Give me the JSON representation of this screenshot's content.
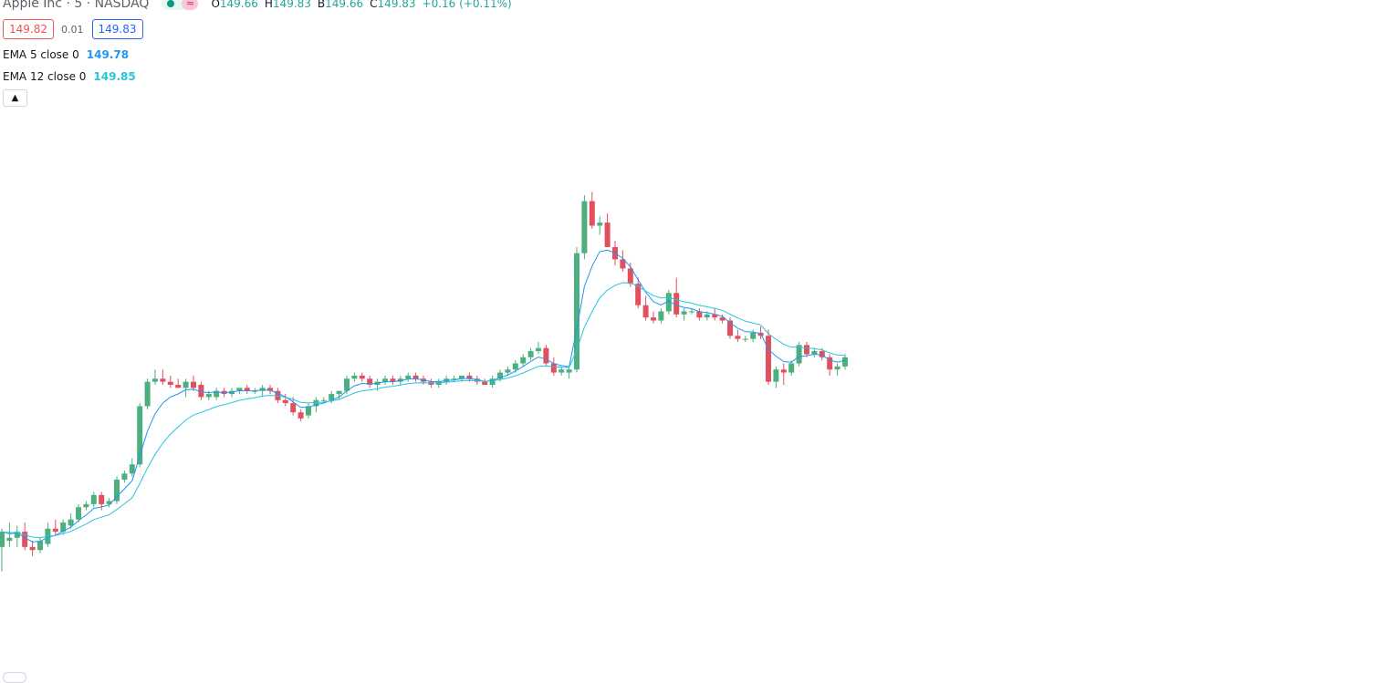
{
  "symbol": {
    "name": "Apple Inc",
    "interval": "5",
    "exchange": "NASDAQ",
    "full_title": "Apple Inc · 5 · NASDAQ"
  },
  "ohlc": {
    "o_label": "O",
    "o": "149.66",
    "h_label": "H",
    "h": "149.83",
    "b_label": "B",
    "b": "149.66",
    "c_label": "C",
    "c": "149.83",
    "change": "+0.16 (+0.11%)"
  },
  "trade": {
    "sell": "149.82",
    "spread": "0.01",
    "buy": "149.83"
  },
  "indicators": [
    {
      "name": "EMA 5 close 0",
      "value": "149.78",
      "color": "#2196f3"
    },
    {
      "name": "EMA 12 close 0",
      "value": "149.85",
      "color": "#26c6da"
    }
  ],
  "colors": {
    "up": "#4caf7d",
    "down": "#e0505e",
    "accent": "#26a69a"
  },
  "icons": {
    "status": "status-dot-icon",
    "delayed": "delayed-data-icon",
    "collapse": "chevron-up-icon"
  },
  "chart_data": {
    "type": "candlestick",
    "xlabel": "",
    "ylabel": "",
    "grid": false,
    "ylim": [
      145.6,
      152.9
    ],
    "series": [
      {
        "name": "Apple Inc",
        "ohlc": [
          [
            145.9,
            146.2,
            145.5,
            146.15
          ],
          [
            146.0,
            146.3,
            145.9,
            146.05
          ],
          [
            146.05,
            146.25,
            145.9,
            146.15
          ],
          [
            146.15,
            146.3,
            145.85,
            145.9
          ],
          [
            145.9,
            146.0,
            145.75,
            145.85
          ],
          [
            145.85,
            146.05,
            145.8,
            146.0
          ],
          [
            145.95,
            146.3,
            145.9,
            146.2
          ],
          [
            146.2,
            146.35,
            146.1,
            146.15
          ],
          [
            146.15,
            146.35,
            146.1,
            146.3
          ],
          [
            146.25,
            146.45,
            146.2,
            146.35
          ],
          [
            146.35,
            146.6,
            146.3,
            146.55
          ],
          [
            146.55,
            146.65,
            146.5,
            146.6
          ],
          [
            146.6,
            146.8,
            146.55,
            146.75
          ],
          [
            146.75,
            146.8,
            146.5,
            146.6
          ],
          [
            146.6,
            146.7,
            146.55,
            146.65
          ],
          [
            146.65,
            147.05,
            146.6,
            147.0
          ],
          [
            147.0,
            147.15,
            146.95,
            147.1
          ],
          [
            147.1,
            147.35,
            147.05,
            147.25
          ],
          [
            147.25,
            148.25,
            147.2,
            148.2
          ],
          [
            148.2,
            148.65,
            148.15,
            148.6
          ],
          [
            148.6,
            148.8,
            148.55,
            148.65
          ],
          [
            148.65,
            148.8,
            148.55,
            148.6
          ],
          [
            148.6,
            148.7,
            148.5,
            148.55
          ],
          [
            148.55,
            148.65,
            148.5,
            148.5
          ],
          [
            148.5,
            148.65,
            148.35,
            148.6
          ],
          [
            148.6,
            148.7,
            148.45,
            148.5
          ],
          [
            148.55,
            148.6,
            148.3,
            148.35
          ],
          [
            148.35,
            148.45,
            148.3,
            148.4
          ],
          [
            148.35,
            148.5,
            148.3,
            148.45
          ],
          [
            148.45,
            148.5,
            148.35,
            148.4
          ],
          [
            148.4,
            148.5,
            148.35,
            148.45
          ],
          [
            148.45,
            148.5,
            148.4,
            148.5
          ],
          [
            148.5,
            148.55,
            148.4,
            148.45
          ],
          [
            148.45,
            148.5,
            148.4,
            148.45
          ],
          [
            148.45,
            148.55,
            148.35,
            148.5
          ],
          [
            148.5,
            148.55,
            148.4,
            148.45
          ],
          [
            148.45,
            148.5,
            148.25,
            148.3
          ],
          [
            148.3,
            148.4,
            148.2,
            148.25
          ],
          [
            148.25,
            148.35,
            148.05,
            148.1
          ],
          [
            148.1,
            148.15,
            147.95,
            148.0
          ],
          [
            148.05,
            148.25,
            148.0,
            148.2
          ],
          [
            148.2,
            148.35,
            148.1,
            148.3
          ],
          [
            148.3,
            148.35,
            148.25,
            148.3
          ],
          [
            148.3,
            148.45,
            148.25,
            148.4
          ],
          [
            148.4,
            148.45,
            148.3,
            148.45
          ],
          [
            148.45,
            148.7,
            148.4,
            148.65
          ],
          [
            148.65,
            148.75,
            148.6,
            148.7
          ],
          [
            148.7,
            148.75,
            148.6,
            148.65
          ],
          [
            148.65,
            148.7,
            148.5,
            148.55
          ],
          [
            148.55,
            148.65,
            148.45,
            148.6
          ],
          [
            148.6,
            148.7,
            148.55,
            148.65
          ],
          [
            148.65,
            148.7,
            148.55,
            148.6
          ],
          [
            148.6,
            148.7,
            148.55,
            148.65
          ],
          [
            148.65,
            148.75,
            148.6,
            148.7
          ],
          [
            148.7,
            148.75,
            148.6,
            148.65
          ],
          [
            148.65,
            148.7,
            148.55,
            148.6
          ],
          [
            148.6,
            148.65,
            148.5,
            148.55
          ],
          [
            148.55,
            148.65,
            148.5,
            148.6
          ],
          [
            148.6,
            148.7,
            148.55,
            148.65
          ],
          [
            148.65,
            148.7,
            148.6,
            148.65
          ],
          [
            148.65,
            148.7,
            148.6,
            148.7
          ],
          [
            148.7,
            148.75,
            148.6,
            148.65
          ],
          [
            148.65,
            148.7,
            148.55,
            148.6
          ],
          [
            148.6,
            148.65,
            148.55,
            148.55
          ],
          [
            148.55,
            148.7,
            148.5,
            148.65
          ],
          [
            148.65,
            148.8,
            148.6,
            148.75
          ],
          [
            148.75,
            148.85,
            148.7,
            148.8
          ],
          [
            148.8,
            148.95,
            148.75,
            148.9
          ],
          [
            148.9,
            149.05,
            148.85,
            149.0
          ],
          [
            149.0,
            149.15,
            148.95,
            149.1
          ],
          [
            149.1,
            149.25,
            149.05,
            149.15
          ],
          [
            149.15,
            149.2,
            148.85,
            148.9
          ],
          [
            148.9,
            149.0,
            148.7,
            148.75
          ],
          [
            148.75,
            148.85,
            148.7,
            148.8
          ],
          [
            148.75,
            148.85,
            148.65,
            148.8
          ],
          [
            148.8,
            150.8,
            148.75,
            150.7
          ],
          [
            150.7,
            151.65,
            150.6,
            151.55
          ],
          [
            151.55,
            151.7,
            151.1,
            151.15
          ],
          [
            151.15,
            151.3,
            151.0,
            151.2
          ],
          [
            151.2,
            151.35,
            150.8,
            150.8
          ],
          [
            150.8,
            150.9,
            150.5,
            150.6
          ],
          [
            150.6,
            150.75,
            150.4,
            150.45
          ],
          [
            150.45,
            150.55,
            150.15,
            150.2
          ],
          [
            150.2,
            150.3,
            149.8,
            149.85
          ],
          [
            149.85,
            150.0,
            149.6,
            149.65
          ],
          [
            149.65,
            149.75,
            149.55,
            149.6
          ],
          [
            149.6,
            149.8,
            149.55,
            149.75
          ],
          [
            149.75,
            150.1,
            149.7,
            150.05
          ],
          [
            150.05,
            150.3,
            149.65,
            149.7
          ],
          [
            149.7,
            149.8,
            149.6,
            149.75
          ],
          [
            149.75,
            149.8,
            149.7,
            149.75
          ],
          [
            149.75,
            149.8,
            149.6,
            149.65
          ],
          [
            149.65,
            149.75,
            149.6,
            149.7
          ],
          [
            149.7,
            149.8,
            149.6,
            149.65
          ],
          [
            149.65,
            149.7,
            149.55,
            149.6
          ],
          [
            149.6,
            149.65,
            149.3,
            149.35
          ],
          [
            149.35,
            149.45,
            149.25,
            149.3
          ],
          [
            149.3,
            149.35,
            149.25,
            149.3
          ],
          [
            149.3,
            149.45,
            149.25,
            149.4
          ],
          [
            149.4,
            149.5,
            149.3,
            149.35
          ],
          [
            149.35,
            149.45,
            148.55,
            148.6
          ],
          [
            148.6,
            148.85,
            148.5,
            148.8
          ],
          [
            148.8,
            148.9,
            148.55,
            148.75
          ],
          [
            148.75,
            148.95,
            148.7,
            148.9
          ],
          [
            148.9,
            149.25,
            148.85,
            149.2
          ],
          [
            149.2,
            149.25,
            149.0,
            149.05
          ],
          [
            149.05,
            149.15,
            149.0,
            149.1
          ],
          [
            149.1,
            149.15,
            148.95,
            149.0
          ],
          [
            149.0,
            149.05,
            148.7,
            148.8
          ],
          [
            148.8,
            148.9,
            148.7,
            148.85
          ],
          [
            148.85,
            149.05,
            148.8,
            149.0
          ]
        ]
      }
    ],
    "ema": [
      {
        "name": "EMA 5 close 0",
        "period": 5
      },
      {
        "name": "EMA 12 close 0",
        "period": 12
      }
    ]
  }
}
